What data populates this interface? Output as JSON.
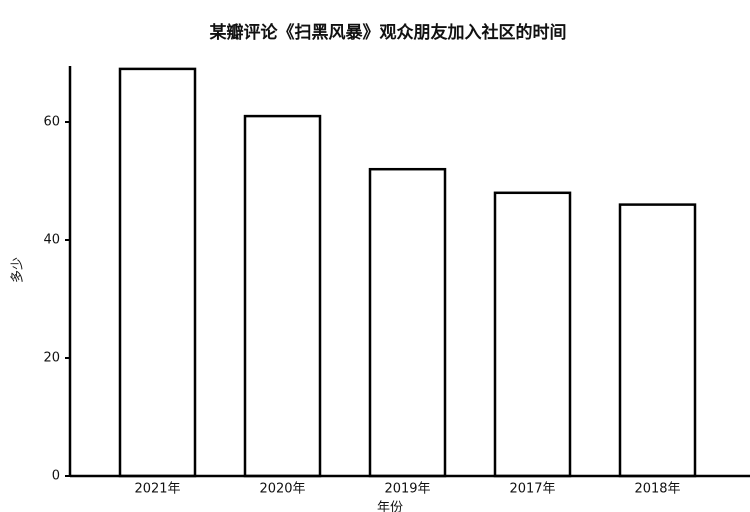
{
  "chart_data": {
    "type": "bar",
    "title": "某瓣评论《扫黑风暴》观众朋友加入社区的时间",
    "x_label": "年份",
    "y_label": "多少",
    "categories": [
      "2021年",
      "2020年",
      "2019年",
      "2017年",
      "2018年"
    ],
    "values": [
      69,
      61,
      52,
      48,
      46
    ],
    "color": "#ffffff",
    "ylim": [
      0,
      70
    ],
    "yticks": [
      0,
      20,
      40,
      60
    ],
    "grid": false
  }
}
